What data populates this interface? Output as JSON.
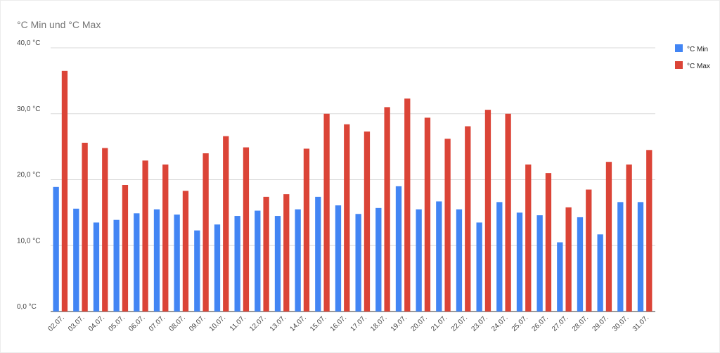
{
  "chart_data": {
    "type": "bar",
    "title": "°C Min und °C Max",
    "xlabel": "",
    "ylabel": "",
    "ylim": [
      0,
      40
    ],
    "y_ticks": [
      "0,0 °C",
      "10,0 °C",
      "20,0 °C",
      "30,0 °C",
      "40,0 °C"
    ],
    "grid": true,
    "legend_position": "right",
    "categories": [
      "02.07.",
      "03.07.",
      "04.07.",
      "05.07.",
      "06.07.",
      "07.07.",
      "08.07.",
      "09.07.",
      "10.07.",
      "11.07.",
      "12.07.",
      "13.07.",
      "14.07.",
      "15.07.",
      "16.07.",
      "17.07.",
      "18.07.",
      "19.07.",
      "20.07.",
      "21.07.",
      "22.07.",
      "23.07.",
      "24.07.",
      "25.07.",
      "26.07.",
      "27.07.",
      "28.07.",
      "29.07.",
      "30.07.",
      "31.07."
    ],
    "series": [
      {
        "name": "°C Min",
        "color": "#4285f4",
        "values": [
          18.9,
          15.6,
          13.5,
          13.9,
          14.9,
          15.5,
          14.7,
          12.3,
          13.2,
          14.5,
          15.3,
          14.5,
          15.5,
          17.4,
          16.1,
          14.8,
          15.7,
          19.0,
          15.5,
          16.7,
          15.5,
          13.5,
          16.6,
          15.0,
          14.6,
          10.5,
          14.3,
          11.7,
          16.6,
          16.6
        ]
      },
      {
        "name": "°C Max",
        "color": "#db4437",
        "values": [
          36.5,
          25.6,
          24.8,
          19.2,
          22.9,
          22.3,
          18.3,
          24.0,
          26.6,
          24.9,
          17.4,
          17.8,
          24.7,
          30.0,
          28.4,
          27.3,
          31.0,
          32.3,
          29.4,
          26.2,
          28.1,
          30.6,
          30.0,
          22.3,
          21.0,
          15.8,
          18.5,
          22.7,
          22.3,
          24.5
        ]
      }
    ]
  }
}
